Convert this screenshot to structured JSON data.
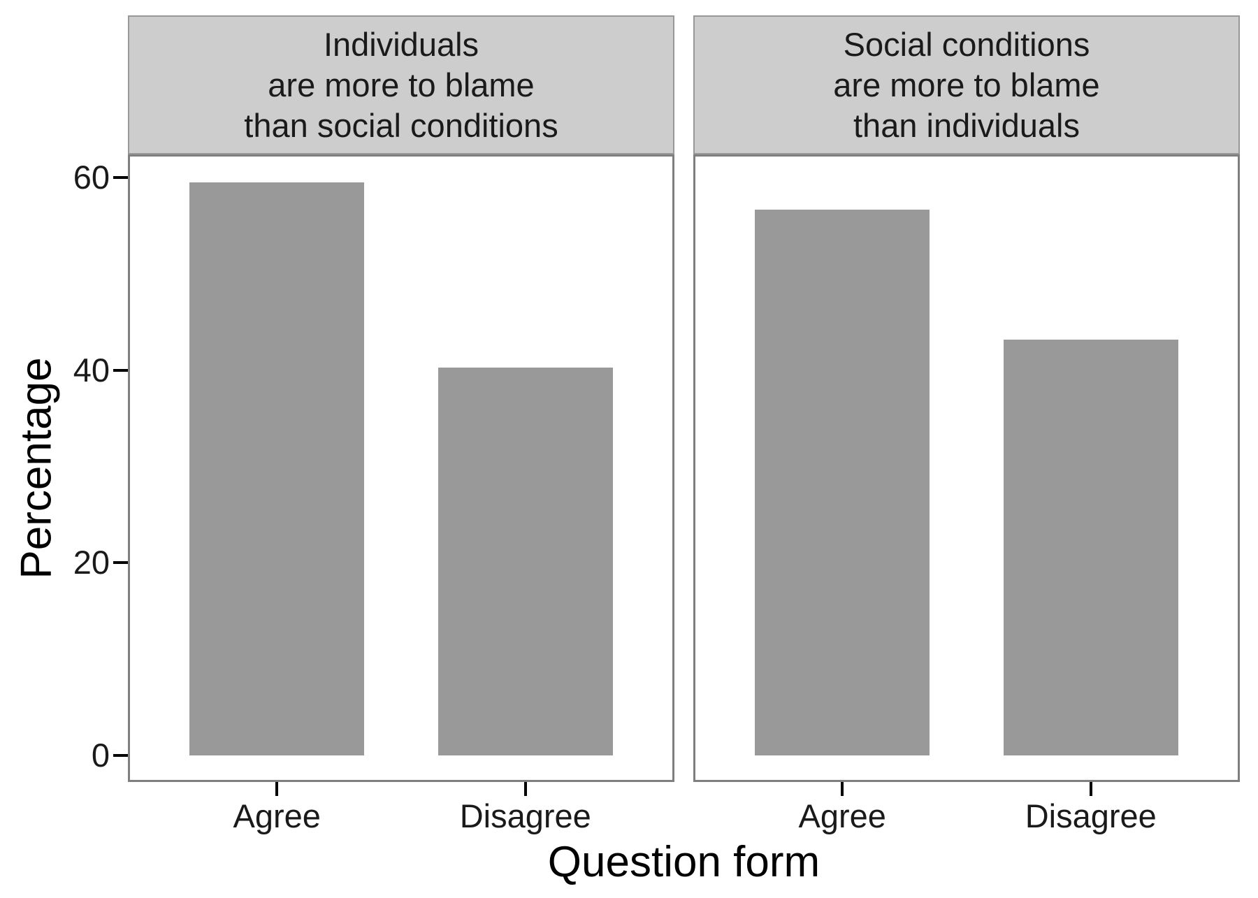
{
  "chart_data": {
    "type": "bar",
    "title": "",
    "xlabel": "Question form",
    "ylabel": "Percentage",
    "categories": [
      "Agree",
      "Disagree"
    ],
    "facets": [
      {
        "label": "Individuals\nare more to blame\nthan social conditions",
        "values": [
          59.5,
          40.3
        ]
      },
      {
        "label": "Social conditions\nare more to blame\nthan individuals",
        "values": [
          56.7,
          43.2
        ]
      }
    ],
    "y_ticks": [
      0,
      20,
      40,
      60
    ],
    "ylim": [
      0,
      62.5
    ],
    "grid": false,
    "legend": "none",
    "bar_color": "#999999",
    "strip_background": "#cdcdcd",
    "panel_border_color": "#7f7f7f",
    "panel_background": "#ffffff",
    "text_color": "#1a1a1a"
  }
}
